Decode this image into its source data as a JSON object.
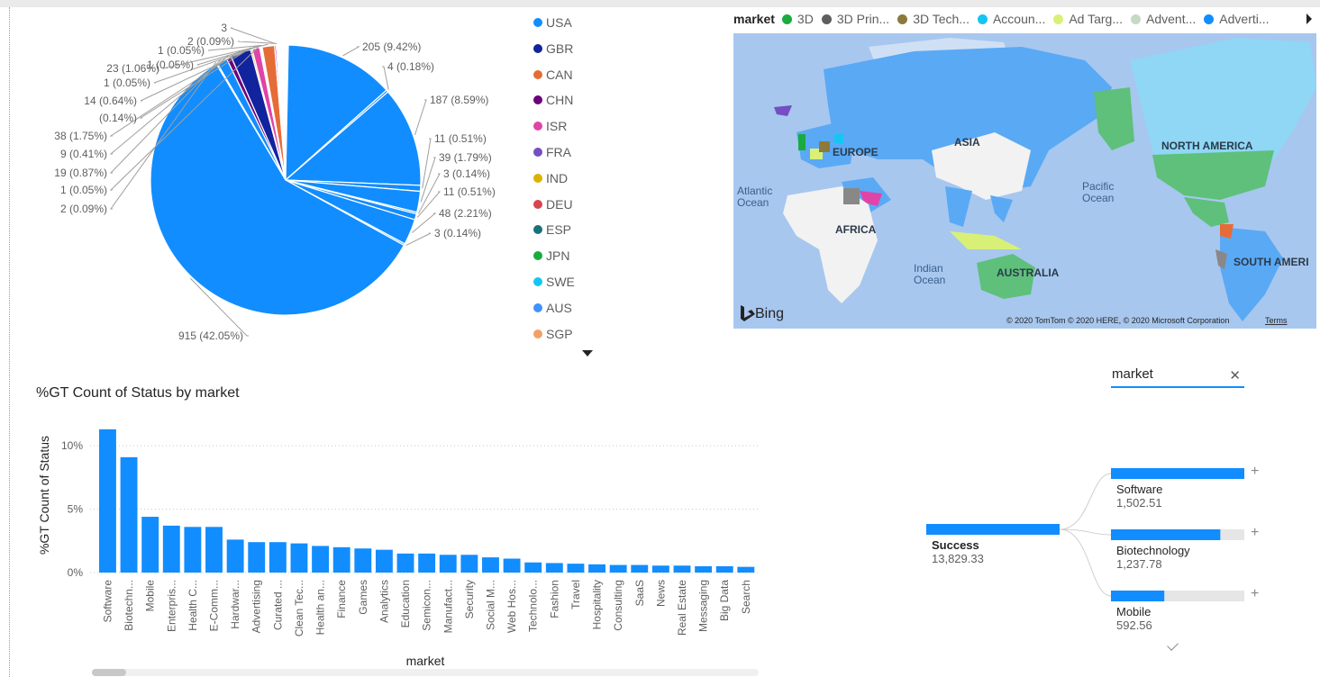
{
  "pie": {
    "slices": [
      {
        "value": 915,
        "label": "915 (42.05%)",
        "color": "#118dff"
      },
      {
        "value": 205,
        "label": "205 (9.42%)",
        "color": "#118dff"
      },
      {
        "value": 187,
        "label": "187 (8.59%)",
        "color": "#118dff"
      },
      {
        "value": 48,
        "label": "48 (2.21%)",
        "color": "#118dff"
      },
      {
        "value": 39,
        "label": "39 (1.79%)",
        "color": "#118dff"
      },
      {
        "value": 38,
        "label": "38 (1.75%)",
        "color": "#12239e"
      },
      {
        "value": 23,
        "label": "23 (1.06%)",
        "color": "#e66c37"
      },
      {
        "value": 19,
        "label": "19 (0.87%)",
        "color": "#118dff"
      },
      {
        "value": 14,
        "label": "14 (0.64%)",
        "color": "#e044a7"
      },
      {
        "value": 11,
        "label": "11 (0.51%)",
        "color": "#118dff"
      },
      {
        "value": 11,
        "label": "11 (0.51%)",
        "color": "#118dff"
      },
      {
        "value": 9,
        "label": "9 (0.41%)",
        "color": "#6b007b"
      },
      {
        "value": 4,
        "label": "4 (0.18%)",
        "color": "#118dff"
      },
      {
        "value": 3,
        "label": "3 (0.14%)",
        "color": "#118dff"
      },
      {
        "value": 3,
        "label": "3 (0.14%)",
        "color": "#118dff"
      },
      {
        "value": 3,
        "label": "3",
        "color": "#744ec2"
      },
      {
        "value": 3,
        "label": "(0.14%)",
        "color": "#d9b300"
      },
      {
        "value": 2,
        "label": "2 (0.09%)",
        "color": "#118dff"
      },
      {
        "value": 2,
        "label": "2 (0.09%)",
        "color": "#d64550"
      },
      {
        "value": 1,
        "label": "1 (0.05%)",
        "color": "#197278"
      },
      {
        "value": 1,
        "label": "1 (0.05%)",
        "color": "#1aab40"
      },
      {
        "value": 1,
        "label": "1 (0.05%)",
        "color": "#15c6f4"
      },
      {
        "value": 1,
        "label": "1 (0.05%)",
        "color": "#4092ff"
      }
    ]
  },
  "pie_legend": [
    {
      "label": "USA",
      "color": "#118dff"
    },
    {
      "label": "GBR",
      "color": "#12239e"
    },
    {
      "label": "CAN",
      "color": "#e66c37"
    },
    {
      "label": "CHN",
      "color": "#6b007b"
    },
    {
      "label": "ISR",
      "color": "#e044a7"
    },
    {
      "label": "FRA",
      "color": "#744ec2"
    },
    {
      "label": "IND",
      "color": "#d9b300"
    },
    {
      "label": "DEU",
      "color": "#d64550"
    },
    {
      "label": "ESP",
      "color": "#197278"
    },
    {
      "label": "JPN",
      "color": "#1aab40"
    },
    {
      "label": "SWE",
      "color": "#15c6f4"
    },
    {
      "label": "AUS",
      "color": "#4092ff"
    },
    {
      "label": "SGP",
      "color": "#f2a06a"
    }
  ],
  "map": {
    "legend_title": "market",
    "legend_items": [
      {
        "label": "3D",
        "color": "#1aab40"
      },
      {
        "label": "3D Prin...",
        "color": "#605e5c"
      },
      {
        "label": "3D Tech...",
        "color": "#8c7a3a"
      },
      {
        "label": "Accoun...",
        "color": "#15c6f4"
      },
      {
        "label": "Ad Targ...",
        "color": "#d9f077"
      },
      {
        "label": "Advent...",
        "color": "#c5d9c4"
      },
      {
        "label": "Adverti...",
        "color": "#118dff"
      }
    ],
    "continent_labels": [
      "ASIA",
      "EUROPE",
      "NORTH AMERICA",
      "AFRICA",
      "AUSTRALIA",
      "SOUTH AMERI"
    ],
    "ocean_labels": [
      [
        "Atlantic",
        "Ocean"
      ],
      [
        "Pacific",
        "Ocean"
      ],
      [
        "Indian",
        "Ocean"
      ]
    ],
    "logo": "Bing",
    "copyright": "© 2020 TomTom © 2020 HERE, © 2020 Microsoft Corporation",
    "terms": "Terms"
  },
  "bar_chart": {
    "title": "%GT Count of Status by market"
  },
  "chart_data": {
    "type": "bar",
    "title": "%GT Count of Status by market",
    "xlabel": "market",
    "ylabel": "%GT Count of Status",
    "ylim": [
      0,
      12
    ],
    "y_ticks": [
      "0%",
      "5%",
      "10%"
    ],
    "categories": [
      "Software",
      "Biotechn...",
      "Mobile",
      "Enterpris...",
      "Health C...",
      "E-Comm...",
      "Hardwar...",
      "Advertising",
      "Curated ...",
      "Clean Tec...",
      "Health an...",
      "Finance",
      "Games",
      "Analytics",
      "Education",
      "Semicon...",
      "Manufact...",
      "Security",
      "Social M...",
      "Web Hos...",
      "Technolo...",
      "Fashion",
      "Travel",
      "Hospitality",
      "Consulting",
      "SaaS",
      "News",
      "Real Estate",
      "Messaging",
      "Big Data",
      "Search"
    ],
    "values": [
      11.3,
      9.1,
      4.4,
      3.7,
      3.6,
      3.6,
      2.6,
      2.4,
      2.4,
      2.3,
      2.1,
      2.0,
      1.9,
      1.8,
      1.5,
      1.5,
      1.4,
      1.4,
      1.2,
      1.1,
      0.8,
      0.75,
      0.7,
      0.65,
      0.6,
      0.6,
      0.55,
      0.55,
      0.5,
      0.5,
      0.45
    ],
    "color": "#118dff",
    "grid": true
  },
  "decomp": {
    "search_value": "market",
    "root": {
      "label": "Success",
      "value": "13,829.33",
      "fill": 1.0
    },
    "children": [
      {
        "label": "Software",
        "value": "1,502.51",
        "fill": 1.0
      },
      {
        "label": "Biotechnology",
        "value": "1,237.78",
        "fill": 0.82
      },
      {
        "label": "Mobile",
        "value": "592.56",
        "fill": 0.4
      }
    ]
  }
}
